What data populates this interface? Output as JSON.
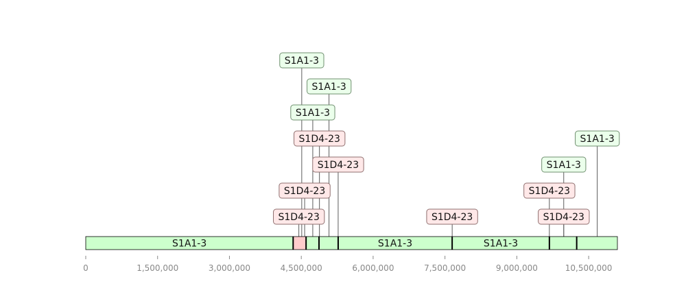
{
  "colors": {
    "green_fill": "#ccffcc",
    "green_label_fill": "#ebffeb",
    "green_label_stroke": "#6f8f6f",
    "pink_fill": "#ffcccc",
    "pink_label_fill": "#ffe8e8",
    "pink_label_stroke": "#8f6f6f",
    "bar_stroke": "#000000",
    "connector": "#333333",
    "tick": "#888888"
  },
  "chart_data": {
    "type": "feature-map",
    "xlim": [
      0,
      11100000
    ],
    "ticks": [
      {
        "value": 0,
        "label": "0"
      },
      {
        "value": 1500000,
        "label": "1,500,000"
      },
      {
        "value": 3000000,
        "label": "3,000,000"
      },
      {
        "value": 4500000,
        "label": "4,500,000"
      },
      {
        "value": 6000000,
        "label": "6,000,000"
      },
      {
        "value": 7500000,
        "label": "7,500,000"
      },
      {
        "value": 9000000,
        "label": "9,000,000"
      },
      {
        "value": 10500000,
        "label": "10,500,000"
      }
    ],
    "segments": [
      {
        "start": 0,
        "end": 4330000,
        "kind": "green",
        "label": "S1A1-3"
      },
      {
        "start": 4330000,
        "end": 4600000,
        "kind": "pink",
        "label": ""
      },
      {
        "start": 4600000,
        "end": 4870000,
        "kind": "green",
        "label": ""
      },
      {
        "start": 4870000,
        "end": 5270000,
        "kind": "green",
        "label": ""
      },
      {
        "start": 5270000,
        "end": 7650000,
        "kind": "green",
        "label": "S1A1-3"
      },
      {
        "start": 7650000,
        "end": 9680000,
        "kind": "green",
        "label": "S1A1-3"
      },
      {
        "start": 9680000,
        "end": 10250000,
        "kind": "green",
        "label": ""
      },
      {
        "start": 10250000,
        "end": 11100000,
        "kind": "green",
        "label": ""
      }
    ],
    "boundaries": [
      4330000,
      4600000,
      4870000,
      5270000,
      7650000,
      9680000,
      10250000
    ],
    "annotations": [
      {
        "pos": 4510000,
        "level": 7,
        "text": "S1A1-3",
        "kind": "green"
      },
      {
        "pos": 5080000,
        "level": 6,
        "text": "S1A1-3",
        "kind": "green"
      },
      {
        "pos": 4740000,
        "level": 5,
        "text": "S1A1-3",
        "kind": "green"
      },
      {
        "pos": 4880000,
        "level": 4,
        "text": "S1D4-23",
        "kind": "pink"
      },
      {
        "pos": 5270000,
        "level": 3,
        "text": "S1D4-23",
        "kind": "pink"
      },
      {
        "pos": 4570000,
        "level": 2,
        "text": "S1D4-23",
        "kind": "pink"
      },
      {
        "pos": 4450000,
        "level": 1,
        "text": "S1D4-23",
        "kind": "pink"
      },
      {
        "pos": 7650000,
        "level": 1,
        "text": "S1D4-23",
        "kind": "pink"
      },
      {
        "pos": 9680000,
        "level": 2,
        "text": "S1D4-23",
        "kind": "pink"
      },
      {
        "pos": 9980000,
        "level": 3,
        "text": "S1A1-3",
        "kind": "green"
      },
      {
        "pos": 10680000,
        "level": 4,
        "text": "S1A1-3",
        "kind": "green"
      },
      {
        "pos": 9980000,
        "level": 1,
        "text": "S1D4-23",
        "kind": "pink"
      }
    ]
  }
}
